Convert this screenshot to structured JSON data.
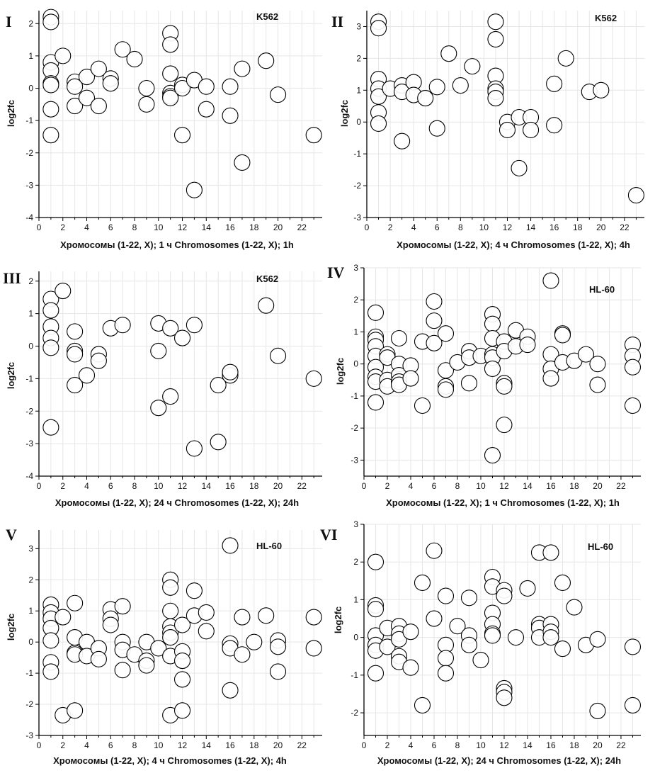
{
  "figure": {
    "background": "#ffffff",
    "axis_color": "#000000",
    "grid_color": "#e6e6e6",
    "marker_fill": "#ffffff",
    "marker_stroke": "#000000",
    "marker_icon": "hollow-circle"
  },
  "chart_data": [
    {
      "type": "scatter",
      "panel": "I",
      "cell_line": "K562",
      "xlabel": "Хромосомы  (1-22, X); 1 ч Chromosomes (1-22, X); 1h",
      "ylabel": "log2fc",
      "xlim": [
        0,
        23.7
      ],
      "ylim": [
        -4,
        2.4
      ],
      "xticks": [
        0,
        2,
        4,
        6,
        8,
        10,
        12,
        14,
        16,
        18,
        20,
        22
      ],
      "yticks": [
        -4,
        -3,
        -2,
        -1,
        0,
        1,
        2
      ],
      "grid": true,
      "points": [
        [
          1,
          2.2
        ],
        [
          1,
          2.05
        ],
        [
          1,
          0.8
        ],
        [
          1,
          0.55
        ],
        [
          1,
          0.15
        ],
        [
          1,
          0.1
        ],
        [
          1,
          -0.65
        ],
        [
          1,
          -1.45
        ],
        [
          2,
          1.0
        ],
        [
          3,
          0.2
        ],
        [
          3,
          0.05
        ],
        [
          3,
          -0.55
        ],
        [
          4,
          0.35
        ],
        [
          4,
          -0.3
        ],
        [
          5,
          0.6
        ],
        [
          5,
          -0.55
        ],
        [
          6,
          0.3
        ],
        [
          6,
          0.15
        ],
        [
          7,
          1.2
        ],
        [
          8,
          0.9
        ],
        [
          9,
          0.0
        ],
        [
          9,
          -0.5
        ],
        [
          11,
          1.7
        ],
        [
          11,
          1.35
        ],
        [
          11,
          0.45
        ],
        [
          11,
          -0.15
        ],
        [
          11,
          -0.25
        ],
        [
          11,
          -0.3
        ],
        [
          12,
          0.1
        ],
        [
          12,
          0.0
        ],
        [
          12,
          -1.45
        ],
        [
          13,
          0.25
        ],
        [
          13,
          -3.15
        ],
        [
          14,
          0.05
        ],
        [
          14,
          -0.65
        ],
        [
          16,
          0.05
        ],
        [
          16,
          -0.85
        ],
        [
          17,
          0.6
        ],
        [
          17,
          -2.3
        ],
        [
          19,
          0.85
        ],
        [
          20,
          -0.2
        ],
        [
          23,
          -1.45
        ]
      ]
    },
    {
      "type": "scatter",
      "panel": "II",
      "cell_line": "K562",
      "xlabel": "Хромосомы  (1-22, X); 4 ч Chromosomes (1-22, X); 4h",
      "ylabel": "log2fc",
      "xlim": [
        0,
        23.7
      ],
      "ylim": [
        -3,
        3.5
      ],
      "xticks": [
        0,
        2,
        4,
        6,
        8,
        10,
        12,
        14,
        16,
        18,
        20,
        22
      ],
      "yticks": [
        -3,
        -2,
        -1,
        0,
        1,
        2,
        3
      ],
      "grid": true,
      "points": [
        [
          1,
          3.15
        ],
        [
          1,
          2.95
        ],
        [
          1,
          1.35
        ],
        [
          1,
          1.05
        ],
        [
          1,
          0.8
        ],
        [
          1,
          0.3
        ],
        [
          1,
          -0.05
        ],
        [
          2,
          1.05
        ],
        [
          3,
          1.15
        ],
        [
          3,
          0.95
        ],
        [
          3,
          -0.6
        ],
        [
          4,
          1.25
        ],
        [
          4,
          0.85
        ],
        [
          5,
          0.75
        ],
        [
          6,
          1.1
        ],
        [
          6,
          -0.2
        ],
        [
          7,
          2.15
        ],
        [
          8,
          1.15
        ],
        [
          9,
          1.75
        ],
        [
          11,
          3.15
        ],
        [
          11,
          2.6
        ],
        [
          11,
          1.45
        ],
        [
          11,
          1.05
        ],
        [
          11,
          0.95
        ],
        [
          11,
          0.75
        ],
        [
          12,
          0.0
        ],
        [
          12,
          -0.25
        ],
        [
          13,
          0.15
        ],
        [
          13,
          -1.45
        ],
        [
          14,
          0.15
        ],
        [
          14,
          -0.25
        ],
        [
          16,
          1.2
        ],
        [
          16,
          -0.1
        ],
        [
          17,
          2.0
        ],
        [
          19,
          0.95
        ],
        [
          20,
          1.0
        ],
        [
          23,
          -2.3
        ]
      ]
    },
    {
      "type": "scatter",
      "panel": "III",
      "cell_line": "K562",
      "xlabel": "Хромосомы  (1-22, X); 24 ч Chromosomes (1-22, X); 24h",
      "ylabel": "log2fc",
      "xlim": [
        0,
        23.7
      ],
      "ylim": [
        -4,
        2.3
      ],
      "xticks": [
        0,
        2,
        4,
        6,
        8,
        10,
        12,
        14,
        16,
        18,
        20,
        22
      ],
      "yticks": [
        -4,
        -3,
        -2,
        -1,
        0,
        1,
        2
      ],
      "grid": true,
      "points": [
        [
          1,
          1.45
        ],
        [
          1,
          1.1
        ],
        [
          1,
          0.6
        ],
        [
          1,
          0.25
        ],
        [
          1,
          -0.05
        ],
        [
          1,
          -2.5
        ],
        [
          2,
          1.7
        ],
        [
          3,
          0.45
        ],
        [
          3,
          -0.15
        ],
        [
          3,
          -0.25
        ],
        [
          3,
          -1.2
        ],
        [
          4,
          -0.9
        ],
        [
          5,
          -0.25
        ],
        [
          5,
          -0.45
        ],
        [
          6,
          0.55
        ],
        [
          7,
          0.65
        ],
        [
          10,
          0.7
        ],
        [
          10,
          -0.15
        ],
        [
          10,
          -1.9
        ],
        [
          11,
          0.55
        ],
        [
          11,
          -1.55
        ],
        [
          12,
          0.25
        ],
        [
          13,
          0.65
        ],
        [
          13,
          -3.15
        ],
        [
          15,
          -1.2
        ],
        [
          15,
          -2.95
        ],
        [
          16,
          -0.9
        ],
        [
          16,
          -0.8
        ],
        [
          19,
          1.25
        ],
        [
          20,
          -0.3
        ],
        [
          23,
          -1.0
        ]
      ]
    },
    {
      "type": "scatter",
      "panel": "IV",
      "cell_line": "HL-60",
      "xlabel": "Хромосомы  (1-22, X); 1 ч Chromosomes (1-22, X); 1h",
      "ylabel": "log2fc",
      "xlim": [
        0,
        23.7
      ],
      "ylim": [
        -3.5,
        3
      ],
      "xticks": [
        0,
        2,
        4,
        6,
        8,
        10,
        12,
        14,
        16,
        18,
        20,
        22
      ],
      "yticks": [
        -3,
        -2,
        -1,
        0,
        1,
        2,
        3
      ],
      "grid": true,
      "points": [
        [
          1,
          1.6
        ],
        [
          1,
          0.85
        ],
        [
          1,
          0.75
        ],
        [
          1,
          0.55
        ],
        [
          1,
          0.25
        ],
        [
          1,
          -0.1
        ],
        [
          1,
          -0.4
        ],
        [
          1,
          -0.55
        ],
        [
          1,
          -1.2
        ],
        [
          2,
          0.3
        ],
        [
          2,
          0.2
        ],
        [
          2,
          -0.5
        ],
        [
          2,
          -0.7
        ],
        [
          3,
          0.8
        ],
        [
          3,
          0.0
        ],
        [
          3,
          -0.35
        ],
        [
          3,
          -0.55
        ],
        [
          3,
          -0.65
        ],
        [
          4,
          -0.05
        ],
        [
          4,
          -0.45
        ],
        [
          5,
          0.7
        ],
        [
          5,
          -1.3
        ],
        [
          6,
          1.95
        ],
        [
          6,
          1.35
        ],
        [
          6,
          0.65
        ],
        [
          7,
          0.95
        ],
        [
          7,
          -0.2
        ],
        [
          7,
          -0.7
        ],
        [
          7,
          -0.8
        ],
        [
          8,
          0.05
        ],
        [
          9,
          0.4
        ],
        [
          9,
          0.2
        ],
        [
          9,
          -0.6
        ],
        [
          10,
          0.25
        ],
        [
          11,
          1.55
        ],
        [
          11,
          1.25
        ],
        [
          11,
          0.8
        ],
        [
          11,
          0.3
        ],
        [
          11,
          0.2
        ],
        [
          11,
          -0.15
        ],
        [
          11,
          -2.85
        ],
        [
          12,
          0.7
        ],
        [
          12,
          0.4
        ],
        [
          12,
          -0.6
        ],
        [
          12,
          -0.7
        ],
        [
          12,
          -1.9
        ],
        [
          13,
          1.05
        ],
        [
          13,
          0.55
        ],
        [
          14,
          0.85
        ],
        [
          14,
          0.6
        ],
        [
          16,
          2.6
        ],
        [
          16,
          0.3
        ],
        [
          16,
          -0.15
        ],
        [
          16,
          -0.45
        ],
        [
          17,
          0.95
        ],
        [
          17,
          0.9
        ],
        [
          17,
          0.05
        ],
        [
          18,
          0.1
        ],
        [
          19,
          0.3
        ],
        [
          20,
          0.0
        ],
        [
          20,
          -0.65
        ],
        [
          23,
          0.6
        ],
        [
          23,
          0.25
        ],
        [
          23,
          -0.1
        ],
        [
          23,
          -1.3
        ]
      ]
    },
    {
      "type": "scatter",
      "panel": "V",
      "cell_line": "HL-60",
      "xlabel": "Хромосомы  (1-22, X); 4 ч Chromosomes (1-22, X); 4h",
      "ylabel": "log2fc",
      "xlim": [
        0,
        23.7
      ],
      "ylim": [
        -3,
        3.6
      ],
      "xticks": [
        0,
        2,
        4,
        6,
        8,
        10,
        12,
        14,
        16,
        18,
        20,
        22
      ],
      "yticks": [
        -3,
        -2,
        -1,
        0,
        1,
        2,
        3
      ],
      "grid": true,
      "points": [
        [
          1,
          1.2
        ],
        [
          1,
          0.95
        ],
        [
          1,
          0.75
        ],
        [
          1,
          0.45
        ],
        [
          1,
          0.05
        ],
        [
          1,
          -0.65
        ],
        [
          1,
          -0.95
        ],
        [
          2,
          0.8
        ],
        [
          2,
          -2.35
        ],
        [
          3,
          1.25
        ],
        [
          3,
          0.15
        ],
        [
          3,
          -0.35
        ],
        [
          3,
          -0.4
        ],
        [
          3,
          -2.2
        ],
        [
          4,
          0.0
        ],
        [
          4,
          -0.45
        ],
        [
          5,
          -0.2
        ],
        [
          5,
          -0.55
        ],
        [
          6,
          1.05
        ],
        [
          6,
          0.75
        ],
        [
          6,
          0.55
        ],
        [
          7,
          1.15
        ],
        [
          7,
          0.0
        ],
        [
          7,
          -0.25
        ],
        [
          7,
          -0.9
        ],
        [
          8,
          -0.4
        ],
        [
          9,
          0.0
        ],
        [
          9,
          -0.6
        ],
        [
          9,
          -0.75
        ],
        [
          10,
          -0.2
        ],
        [
          11,
          2.0
        ],
        [
          11,
          1.75
        ],
        [
          11,
          1.0
        ],
        [
          11,
          0.5
        ],
        [
          11,
          0.3
        ],
        [
          11,
          0.15
        ],
        [
          11,
          -0.45
        ],
        [
          11,
          -2.35
        ],
        [
          12,
          0.55
        ],
        [
          12,
          -0.3
        ],
        [
          12,
          -0.6
        ],
        [
          12,
          -1.2
        ],
        [
          12,
          -2.2
        ],
        [
          13,
          1.65
        ],
        [
          13,
          0.85
        ],
        [
          14,
          0.95
        ],
        [
          14,
          0.35
        ],
        [
          16,
          3.1
        ],
        [
          16,
          -0.05
        ],
        [
          16,
          -0.2
        ],
        [
          16,
          -1.55
        ],
        [
          17,
          0.8
        ],
        [
          17,
          -0.4
        ],
        [
          18,
          0.0
        ],
        [
          19,
          0.85
        ],
        [
          20,
          0.05
        ],
        [
          20,
          -0.15
        ],
        [
          20,
          -0.95
        ],
        [
          23,
          0.8
        ],
        [
          23,
          -0.2
        ]
      ]
    },
    {
      "type": "scatter",
      "panel": "VI",
      "cell_line": "HL-60",
      "xlabel": "Хромосомы  (1-22, X); 24 ч Chromosomes (1-22, X); 24h",
      "ylabel": "log2fc",
      "xlim": [
        0,
        23.7
      ],
      "ylim": [
        -2.6,
        3
      ],
      "xticks": [
        0,
        2,
        4,
        6,
        8,
        10,
        12,
        14,
        16,
        18,
        20,
        22
      ],
      "yticks": [
        -2,
        -1,
        0,
        1,
        2,
        3
      ],
      "grid": true,
      "points": [
        [
          1,
          2.0
        ],
        [
          1,
          0.85
        ],
        [
          1,
          0.75
        ],
        [
          1,
          0.05
        ],
        [
          1,
          -0.2
        ],
        [
          1,
          -0.35
        ],
        [
          1,
          -0.95
        ],
        [
          2,
          0.25
        ],
        [
          2,
          -0.25
        ],
        [
          3,
          0.3
        ],
        [
          3,
          0.1
        ],
        [
          3,
          -0.05
        ],
        [
          3,
          -0.5
        ],
        [
          3,
          -0.65
        ],
        [
          4,
          0.15
        ],
        [
          4,
          -0.8
        ],
        [
          5,
          1.45
        ],
        [
          5,
          -1.8
        ],
        [
          6,
          2.3
        ],
        [
          6,
          0.5
        ],
        [
          7,
          1.1
        ],
        [
          7,
          -0.2
        ],
        [
          7,
          -0.55
        ],
        [
          7,
          -0.95
        ],
        [
          8,
          0.3
        ],
        [
          9,
          1.05
        ],
        [
          9,
          0.05
        ],
        [
          9,
          -0.2
        ],
        [
          10,
          -0.6
        ],
        [
          11,
          1.6
        ],
        [
          11,
          1.35
        ],
        [
          11,
          0.65
        ],
        [
          11,
          0.35
        ],
        [
          11,
          0.1
        ],
        [
          11,
          0.05
        ],
        [
          12,
          1.25
        ],
        [
          12,
          1.1
        ],
        [
          12,
          -1.35
        ],
        [
          12,
          -1.45
        ],
        [
          12,
          -1.6
        ],
        [
          13,
          0.0
        ],
        [
          14,
          1.3
        ],
        [
          15,
          2.25
        ],
        [
          15,
          0.35
        ],
        [
          15,
          0.25
        ],
        [
          15,
          0.0
        ],
        [
          16,
          2.25
        ],
        [
          16,
          0.35
        ],
        [
          16,
          0.15
        ],
        [
          16,
          0.0
        ],
        [
          17,
          1.45
        ],
        [
          17,
          -0.3
        ],
        [
          18,
          0.8
        ],
        [
          19,
          -0.2
        ],
        [
          20,
          -0.05
        ],
        [
          20,
          -1.95
        ],
        [
          23,
          -0.25
        ],
        [
          23,
          -1.8
        ]
      ]
    }
  ]
}
